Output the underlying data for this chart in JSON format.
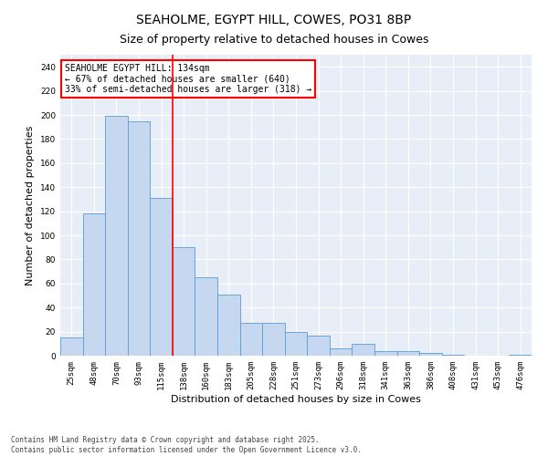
{
  "title": "SEAHOLME, EGYPT HILL, COWES, PO31 8BP",
  "subtitle": "Size of property relative to detached houses in Cowes",
  "xlabel": "Distribution of detached houses by size in Cowes",
  "ylabel": "Number of detached properties",
  "categories": [
    "25sqm",
    "48sqm",
    "70sqm",
    "93sqm",
    "115sqm",
    "138sqm",
    "160sqm",
    "183sqm",
    "205sqm",
    "228sqm",
    "251sqm",
    "273sqm",
    "296sqm",
    "318sqm",
    "341sqm",
    "363sqm",
    "386sqm",
    "408sqm",
    "431sqm",
    "453sqm",
    "476sqm"
  ],
  "values": [
    15,
    118,
    199,
    195,
    131,
    90,
    65,
    51,
    27,
    27,
    20,
    17,
    6,
    10,
    4,
    4,
    2,
    1,
    0,
    0,
    1
  ],
  "bar_color": "#c5d8f0",
  "bar_edge_color": "#5b9bd5",
  "vline_x": 4.5,
  "annotation_text": "SEAHOLME EGYPT HILL: 134sqm\n← 67% of detached houses are smaller (640)\n33% of semi-detached houses are larger (318) →",
  "annotation_box_color": "white",
  "annotation_box_edge": "red",
  "vline_color": "red",
  "ylim": [
    0,
    250
  ],
  "yticks": [
    0,
    20,
    40,
    60,
    80,
    100,
    120,
    140,
    160,
    180,
    200,
    220,
    240
  ],
  "background_color": "#e8eef7",
  "grid_color": "white",
  "footer": "Contains HM Land Registry data © Crown copyright and database right 2025.\nContains public sector information licensed under the Open Government Licence v3.0.",
  "title_fontsize": 10,
  "subtitle_fontsize": 9,
  "tick_fontsize": 6.5,
  "ylabel_fontsize": 8,
  "xlabel_fontsize": 8,
  "annotation_fontsize": 7,
  "footer_fontsize": 5.5
}
